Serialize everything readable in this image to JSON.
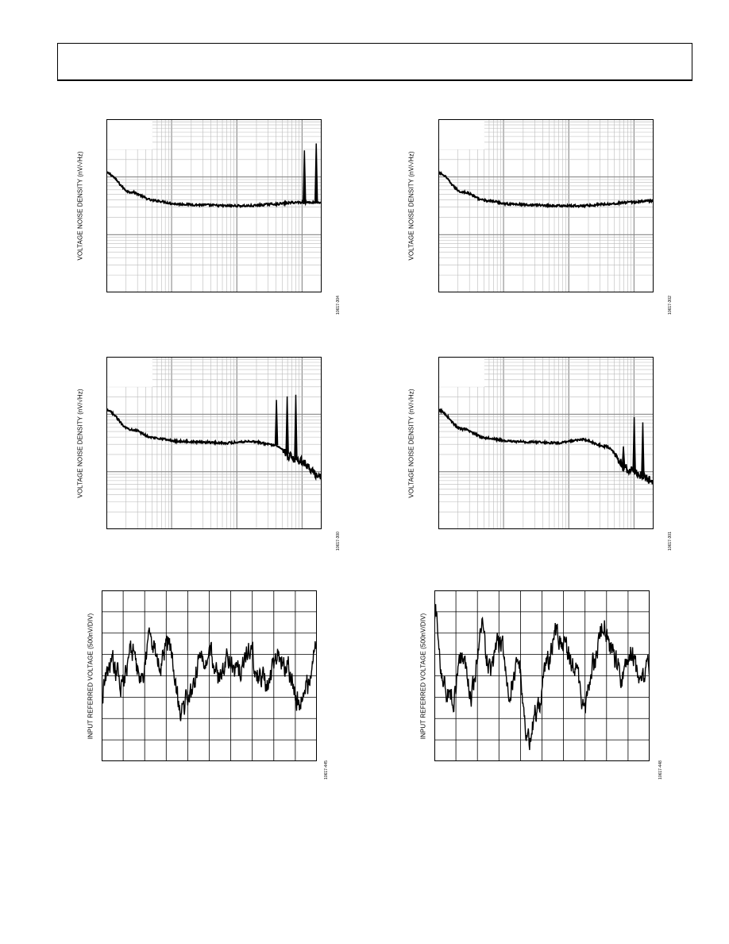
{
  "chart_data": [
    {
      "id": "p1",
      "type": "line",
      "ylabel": "VOLTAGE NOISE DENSITY (nV/√Hz)",
      "figure_id": "10617-304",
      "x_scale": "log",
      "y_scale": "log",
      "grid": true,
      "series": [
        {
          "values": [
            0.69,
            0.58,
            0.53,
            0.51,
            0.505,
            0.5,
            0.5,
            0.51,
            0.52,
            0.52
          ]
        }
      ],
      "spikes": [
        {
          "at": 0.92,
          "peak": 0.82
        },
        {
          "at": 0.975,
          "peak": 0.86
        }
      ]
    },
    {
      "id": "p2",
      "type": "line",
      "ylabel": "VOLTAGE NOISE DENSITY (nV/√Hz)",
      "figure_id": "10617-302",
      "x_scale": "log",
      "y_scale": "log",
      "grid": true,
      "series": [
        {
          "values": [
            0.69,
            0.58,
            0.53,
            0.51,
            0.505,
            0.5,
            0.5,
            0.51,
            0.52,
            0.53
          ]
        }
      ],
      "spikes": []
    },
    {
      "id": "p3",
      "type": "line",
      "ylabel": "VOLTAGE NOISE DENSITY (nV/√Hz)",
      "figure_id": "10617-300",
      "x_scale": "log",
      "y_scale": "log",
      "grid": true,
      "series": [
        {
          "values": [
            0.69,
            0.58,
            0.53,
            0.51,
            0.505,
            0.5,
            0.51,
            0.49,
            0.4,
            0.3
          ]
        }
      ],
      "spikes": [
        {
          "at": 0.79,
          "peak": 0.75
        },
        {
          "at": 0.84,
          "peak": 0.77
        },
        {
          "at": 0.88,
          "peak": 0.78
        }
      ]
    },
    {
      "id": "p4",
      "type": "line",
      "ylabel": "VOLTAGE NOISE DENSITY (nV/√Hz)",
      "figure_id": "10617-301",
      "x_scale": "log",
      "y_scale": "log",
      "grid": true,
      "series": [
        {
          "values": [
            0.69,
            0.58,
            0.53,
            0.51,
            0.505,
            0.5,
            0.52,
            0.48,
            0.34,
            0.28
          ]
        }
      ],
      "spikes": [
        {
          "at": 0.86,
          "peak": 0.48
        },
        {
          "at": 0.91,
          "peak": 0.65
        },
        {
          "at": 0.95,
          "peak": 0.62
        }
      ]
    },
    {
      "id": "p5",
      "type": "line",
      "ylabel": "INPUT REFERRED VOLTAGE (500nV/DIV)",
      "figure_id": "10617-445",
      "grid": true,
      "divisions_x": 10,
      "divisions_y": 8,
      "series": [
        {
          "values": [
            -0.8,
            0.7,
            -0.4,
            1.1,
            -0.1,
            1.8,
            0.6,
            1.4,
            -1.5,
            -1.1,
            0.6,
            1.2,
            -0.3,
            0.8,
            0.2,
            1.4,
            0.1,
            -0.4,
            0.9,
            0.4,
            -1.2,
            -0.5,
            1.8
          ]
        }
      ]
    },
    {
      "id": "p6",
      "type": "line",
      "ylabel": "INPUT REFERRED VOLTAGE (500nV/DIV)",
      "figure_id": "10617-448",
      "grid": true,
      "divisions_x": 10,
      "divisions_y": 8,
      "series": [
        {
          "values": [
            3.0,
            -0.5,
            -1.0,
            0.8,
            -0.8,
            2.4,
            0.2,
            1.6,
            -0.5,
            0.6,
            -3.0,
            -1.6,
            0.6,
            2.0,
            1.2,
            0.4,
            -1.6,
            0.4,
            2.6,
            1.0,
            0.0,
            1.2,
            -0.4,
            0.6
          ]
        }
      ]
    }
  ]
}
